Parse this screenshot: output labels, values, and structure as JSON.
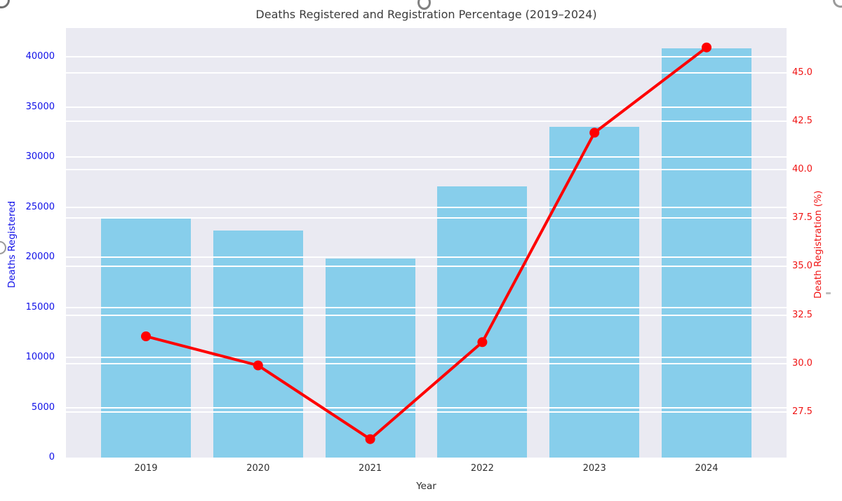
{
  "chart_data": {
    "type": "bar",
    "title": "Deaths Registered and Registration Percentage (2019–2024)",
    "xlabel": "Year",
    "ylabel_left": "Deaths Registered",
    "ylabel_right": "Death Registration (%)",
    "categories": [
      "2019",
      "2020",
      "2021",
      "2022",
      "2023",
      "2024"
    ],
    "series": [
      {
        "name": "Deaths Registered",
        "type": "bar",
        "axis": "left",
        "color": "#87CEEB",
        "values": [
          23900,
          22700,
          19900,
          27100,
          33000,
          40900
        ]
      },
      {
        "name": "Death Registration (%)",
        "type": "line",
        "axis": "right",
        "color": "#FF0000",
        "marker": "circle",
        "values": [
          31.4,
          29.9,
          26.1,
          31.1,
          41.9,
          46.3
        ]
      }
    ],
    "ylim_left": [
      0,
      42900
    ],
    "ylim_right": [
      25.15,
      47.3
    ],
    "yticks_left": [
      "0",
      "5000",
      "10000",
      "15000",
      "20000",
      "25000",
      "30000",
      "35000",
      "40000"
    ],
    "yticks_right": [
      "27.5",
      "30.0",
      "32.5",
      "35.0",
      "37.5",
      "40.0",
      "42.5",
      "45.0"
    ],
    "grid": true,
    "legend": "none",
    "colors": {
      "plot_background": "#EAEAF2",
      "figure_background": "#FFFFFF",
      "grid_color": "#FFFFFF",
      "left_axis_text": "#0F0FE8",
      "right_axis_text": "#F01414",
      "title_text": "#3C3C3C",
      "xtick_text": "#2E2E2E"
    }
  }
}
